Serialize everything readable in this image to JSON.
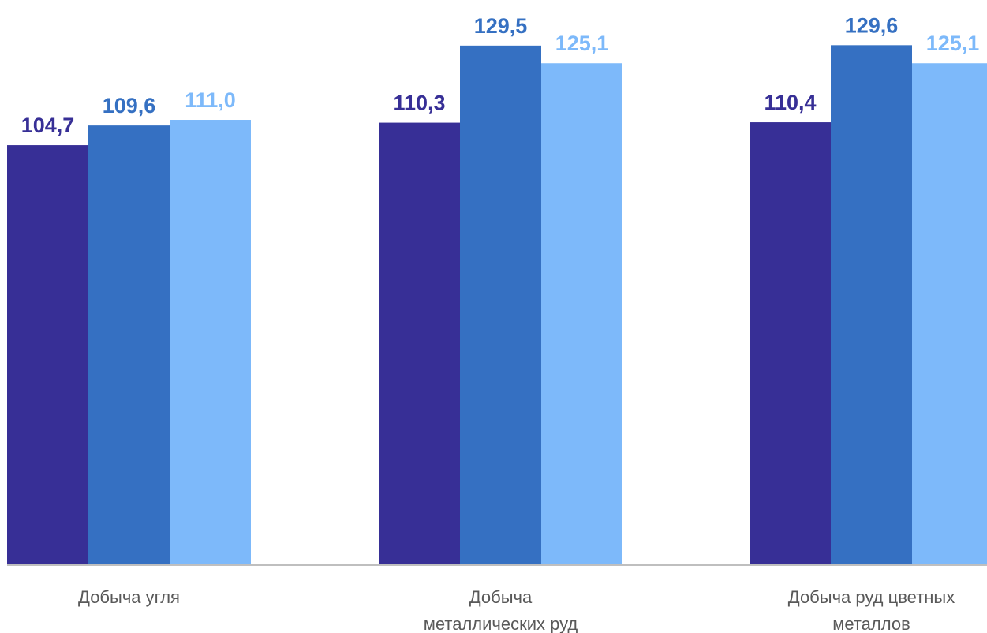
{
  "chart_data": {
    "type": "bar",
    "categories": [
      [
        "Добыча угля"
      ],
      [
        "Добыча",
        "металлических руд"
      ],
      [
        "Добыча руд цветных",
        "металлов"
      ]
    ],
    "series": [
      {
        "values": [
          104.7,
          110.3,
          110.4
        ],
        "labels": [
          "104,7",
          "110,3",
          "110,4"
        ],
        "color": "#372F96"
      },
      {
        "values": [
          109.6,
          129.5,
          129.6
        ],
        "labels": [
          "109,6",
          "129,5",
          "129,6"
        ],
        "color": "#3570C2"
      },
      {
        "values": [
          111.0,
          125.1,
          125.1
        ],
        "labels": [
          "111,0",
          "125,1",
          "125,1"
        ],
        "color": "#7DB9FA"
      }
    ],
    "value_label_colors": [
      "#372F96",
      "#3570C2",
      "#7DB9FA"
    ],
    "axis_color": "#BFBFBF",
    "category_label_color": "#595959",
    "grid": false,
    "legend": "none"
  }
}
